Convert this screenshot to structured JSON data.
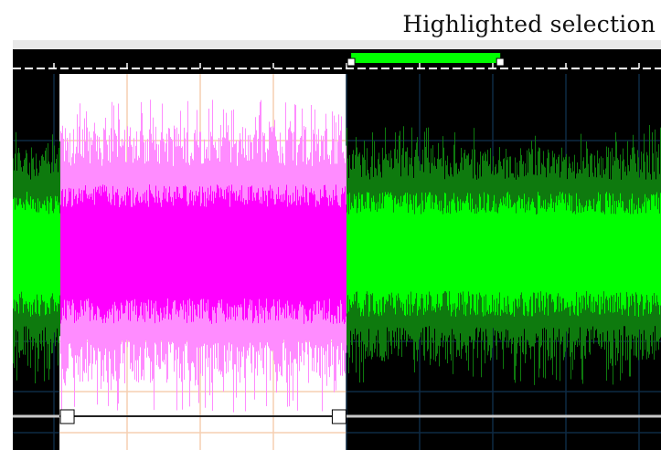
{
  "annotation": {
    "caption": "Highlighted selection"
  },
  "waveform": {
    "view_range": [
      0,
      1
    ],
    "selection_range": [
      0.072,
      0.514
    ],
    "highlight_bar_range": [
      0.522,
      0.752
    ],
    "colors": {
      "background": "#000000",
      "grid": "#0e2a44",
      "selection_background": "#ffffff",
      "selection_grid": "#f6cfb2",
      "wave_outer": "#0e7a0e",
      "wave_core": "#00ff00",
      "selection_wave_outer": "#ff8cff",
      "selection_wave_core": "#ff00ff",
      "highlight_bar": "#00ff00",
      "ruler": "#ffffff",
      "envelope": "#c8c8c8",
      "envelope_selected": "#222222"
    }
  }
}
